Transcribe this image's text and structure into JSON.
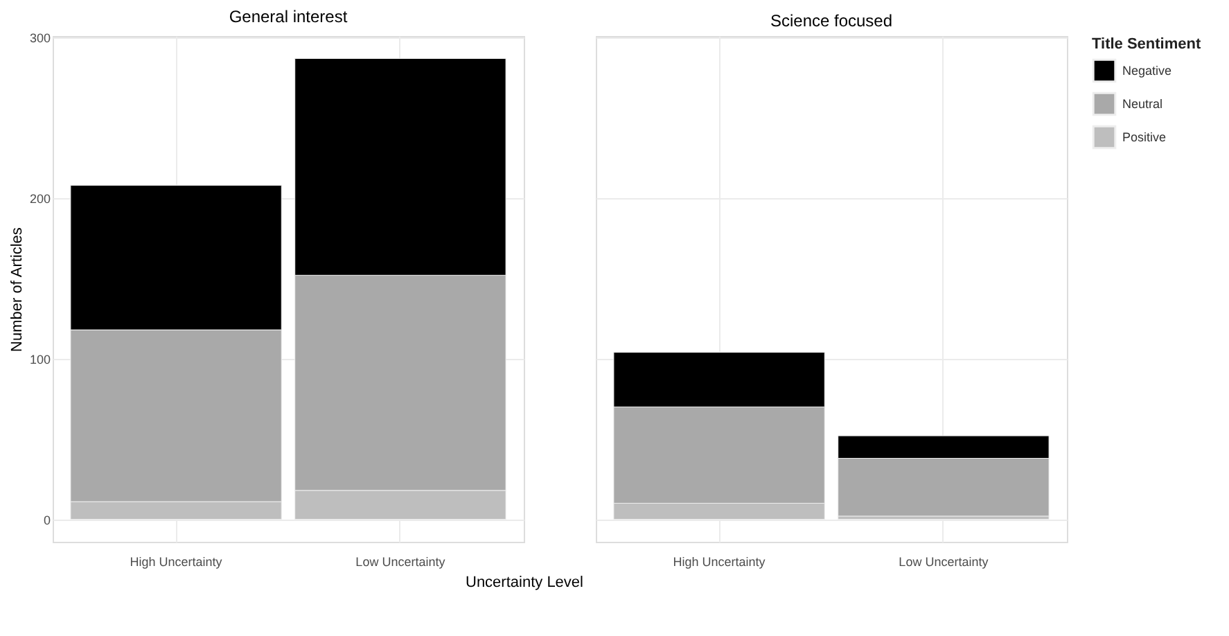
{
  "chart_data": [
    {
      "type": "bar",
      "title": "General interest",
      "ylabel": "Number of Articles",
      "xlabel": "Uncertainty Level",
      "categories": [
        "High Uncertainty",
        "Low Uncertainty"
      ],
      "stacked": true,
      "series": [
        {
          "color": "#bebebe",
          "values": [
            11,
            18
          ]
        },
        {
          "color": "#a9a9a9",
          "values": [
            107,
            134
          ]
        },
        {
          "color": "#000000",
          "values": [
            90,
            135
          ]
        }
      ],
      "ylim": [
        -14,
        301
      ],
      "yticks": [
        0,
        100,
        200,
        300
      ],
      "grid": true
    },
    {
      "type": "bar",
      "title": "Science focused",
      "categories": [
        "High Uncertainty",
        "Low Uncertainty"
      ],
      "stacked": true,
      "tick_labels": "x",
      "legend_title": "Title Sentiment",
      "legend": "right",
      "series": [
        {
          "name": "Positive",
          "color": "#bebebe",
          "values": [
            10,
            2
          ]
        },
        {
          "name": "Neutral",
          "color": "#a9a9a9",
          "values": [
            60,
            36
          ]
        },
        {
          "name": "Negative",
          "color": "#000000",
          "values": [
            34,
            14
          ]
        }
      ],
      "ylim": [
        -14,
        301
      ],
      "yticks": [
        0,
        100,
        200,
        300
      ],
      "grid": true
    }
  ]
}
